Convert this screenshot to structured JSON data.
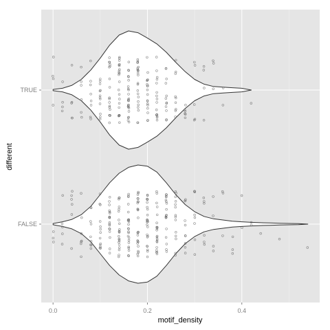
{
  "chart_data": {
    "type": "violin",
    "orientation": "horizontal",
    "xlabel": "motif_density",
    "ylabel": "different",
    "xlim": [
      -0.025,
      0.565
    ],
    "x_ticks": [
      "0.0",
      "0.2",
      "0.4"
    ],
    "x_tick_values": [
      0.0,
      0.2,
      0.4
    ],
    "x_minor_gridlines": [
      0.1,
      0.3,
      0.5
    ],
    "categories": [
      "TRUE",
      "FALSE"
    ],
    "grid": true,
    "legend": "none",
    "colors": {
      "panel_background": "#e5e5e5",
      "gridline": "#ffffff",
      "violin_fill": "#ffffff",
      "violin_outline": "#333333",
      "points": "#555555"
    },
    "violins": [
      {
        "category": "TRUE",
        "min": 0.0,
        "max": 0.42,
        "mode": 0.16,
        "density_profile": [
          [
            0.0,
            0.01
          ],
          [
            0.02,
            0.03
          ],
          [
            0.04,
            0.08
          ],
          [
            0.06,
            0.18
          ],
          [
            0.08,
            0.34
          ],
          [
            0.1,
            0.54
          ],
          [
            0.12,
            0.76
          ],
          [
            0.14,
            0.93
          ],
          [
            0.16,
            1.0
          ],
          [
            0.18,
            0.97
          ],
          [
            0.2,
            0.88
          ],
          [
            0.22,
            0.78
          ],
          [
            0.24,
            0.64
          ],
          [
            0.26,
            0.47
          ],
          [
            0.28,
            0.31
          ],
          [
            0.3,
            0.18
          ],
          [
            0.32,
            0.1
          ],
          [
            0.34,
            0.06
          ],
          [
            0.36,
            0.05
          ],
          [
            0.38,
            0.04
          ],
          [
            0.4,
            0.03
          ],
          [
            0.42,
            0.0
          ]
        ]
      },
      {
        "category": "FALSE",
        "min": 0.0,
        "max": 0.54,
        "mode": 0.185,
        "density_profile": [
          [
            0.0,
            0.01
          ],
          [
            0.02,
            0.04
          ],
          [
            0.04,
            0.08
          ],
          [
            0.06,
            0.16
          ],
          [
            0.08,
            0.3
          ],
          [
            0.1,
            0.5
          ],
          [
            0.12,
            0.7
          ],
          [
            0.14,
            0.86
          ],
          [
            0.16,
            0.96
          ],
          [
            0.18,
            1.0
          ],
          [
            0.2,
            0.98
          ],
          [
            0.22,
            0.88
          ],
          [
            0.24,
            0.7
          ],
          [
            0.26,
            0.5
          ],
          [
            0.28,
            0.33
          ],
          [
            0.3,
            0.21
          ],
          [
            0.32,
            0.13
          ],
          [
            0.34,
            0.09
          ],
          [
            0.36,
            0.07
          ],
          [
            0.38,
            0.05
          ],
          [
            0.4,
            0.04
          ],
          [
            0.42,
            0.03
          ],
          [
            0.44,
            0.025
          ],
          [
            0.46,
            0.02
          ],
          [
            0.48,
            0.015
          ],
          [
            0.5,
            0.012
          ],
          [
            0.52,
            0.008
          ],
          [
            0.54,
            0.0
          ]
        ]
      }
    ],
    "jitter_points": {
      "note_counts_approximate": true,
      "TRUE": [
        [
          0.0,
          4
        ],
        [
          0.02,
          4
        ],
        [
          0.04,
          5
        ],
        [
          0.06,
          6
        ],
        [
          0.08,
          8
        ],
        [
          0.1,
          12
        ],
        [
          0.12,
          18
        ],
        [
          0.14,
          22
        ],
        [
          0.16,
          24
        ],
        [
          0.18,
          22
        ],
        [
          0.2,
          18
        ],
        [
          0.22,
          16
        ],
        [
          0.24,
          12
        ],
        [
          0.26,
          9
        ],
        [
          0.28,
          6
        ],
        [
          0.3,
          5
        ],
        [
          0.32,
          4
        ],
        [
          0.34,
          3
        ],
        [
          0.36,
          2
        ],
        [
          0.42,
          1
        ]
      ],
      "FALSE": [
        [
          0.0,
          3
        ],
        [
          0.02,
          5
        ],
        [
          0.04,
          6
        ],
        [
          0.06,
          7
        ],
        [
          0.08,
          9
        ],
        [
          0.1,
          13
        ],
        [
          0.12,
          18
        ],
        [
          0.14,
          22
        ],
        [
          0.16,
          24
        ],
        [
          0.18,
          25
        ],
        [
          0.2,
          24
        ],
        [
          0.22,
          22
        ],
        [
          0.24,
          18
        ],
        [
          0.26,
          14
        ],
        [
          0.28,
          10
        ],
        [
          0.3,
          8
        ],
        [
          0.32,
          6
        ],
        [
          0.34,
          4
        ],
        [
          0.36,
          3
        ],
        [
          0.38,
          3
        ],
        [
          0.4,
          2
        ],
        [
          0.42,
          2
        ],
        [
          0.44,
          1
        ],
        [
          0.48,
          1
        ],
        [
          0.54,
          1
        ]
      ]
    }
  }
}
